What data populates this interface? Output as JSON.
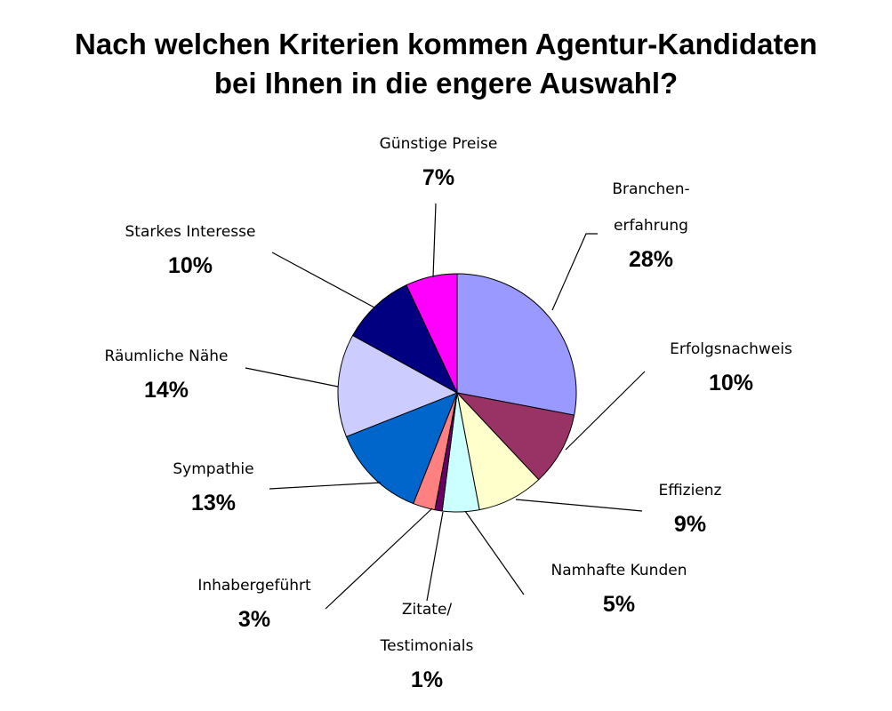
{
  "chart_data": {
    "type": "pie",
    "title_line1": "Nach welchen Kriterien kommen Agentur-Kandidaten",
    "title_line2": "bei Ihnen in die engere Auswahl?",
    "start": "12 o'clock",
    "direction": "clockwise",
    "slices": [
      {
        "label_lines": [
          "Branchen-",
          "erfahrung"
        ],
        "value": 28,
        "pct_text": "28%",
        "color": "#9999ff"
      },
      {
        "label_lines": [
          "Erfolgsnachweis"
        ],
        "value": 10,
        "pct_text": "10%",
        "color": "#993366"
      },
      {
        "label_lines": [
          "Effizienz"
        ],
        "value": 9,
        "pct_text": "9%",
        "color": "#ffffcc"
      },
      {
        "label_lines": [
          "Namhafte Kunden"
        ],
        "value": 5,
        "pct_text": "5%",
        "color": "#ccffff"
      },
      {
        "label_lines": [
          "Zitate/",
          "Testimonials"
        ],
        "value": 1,
        "pct_text": "1%",
        "color": "#660066"
      },
      {
        "label_lines": [
          "Inhabergeführt"
        ],
        "value": 3,
        "pct_text": "3%",
        "color": "#ff8080"
      },
      {
        "label_lines": [
          "Sympathie"
        ],
        "value": 13,
        "pct_text": "13%",
        "color": "#0066cc"
      },
      {
        "label_lines": [
          "Räumliche Nähe"
        ],
        "value": 14,
        "pct_text": "14%",
        "color": "#ccccff"
      },
      {
        "label_lines": [
          "Starkes Interesse"
        ],
        "value": 10,
        "pct_text": "10%",
        "color": "#000080"
      },
      {
        "label_lines": [
          "Günstige Preise"
        ],
        "value": 7,
        "pct_text": "7%",
        "color": "#ff00ff"
      }
    ]
  }
}
